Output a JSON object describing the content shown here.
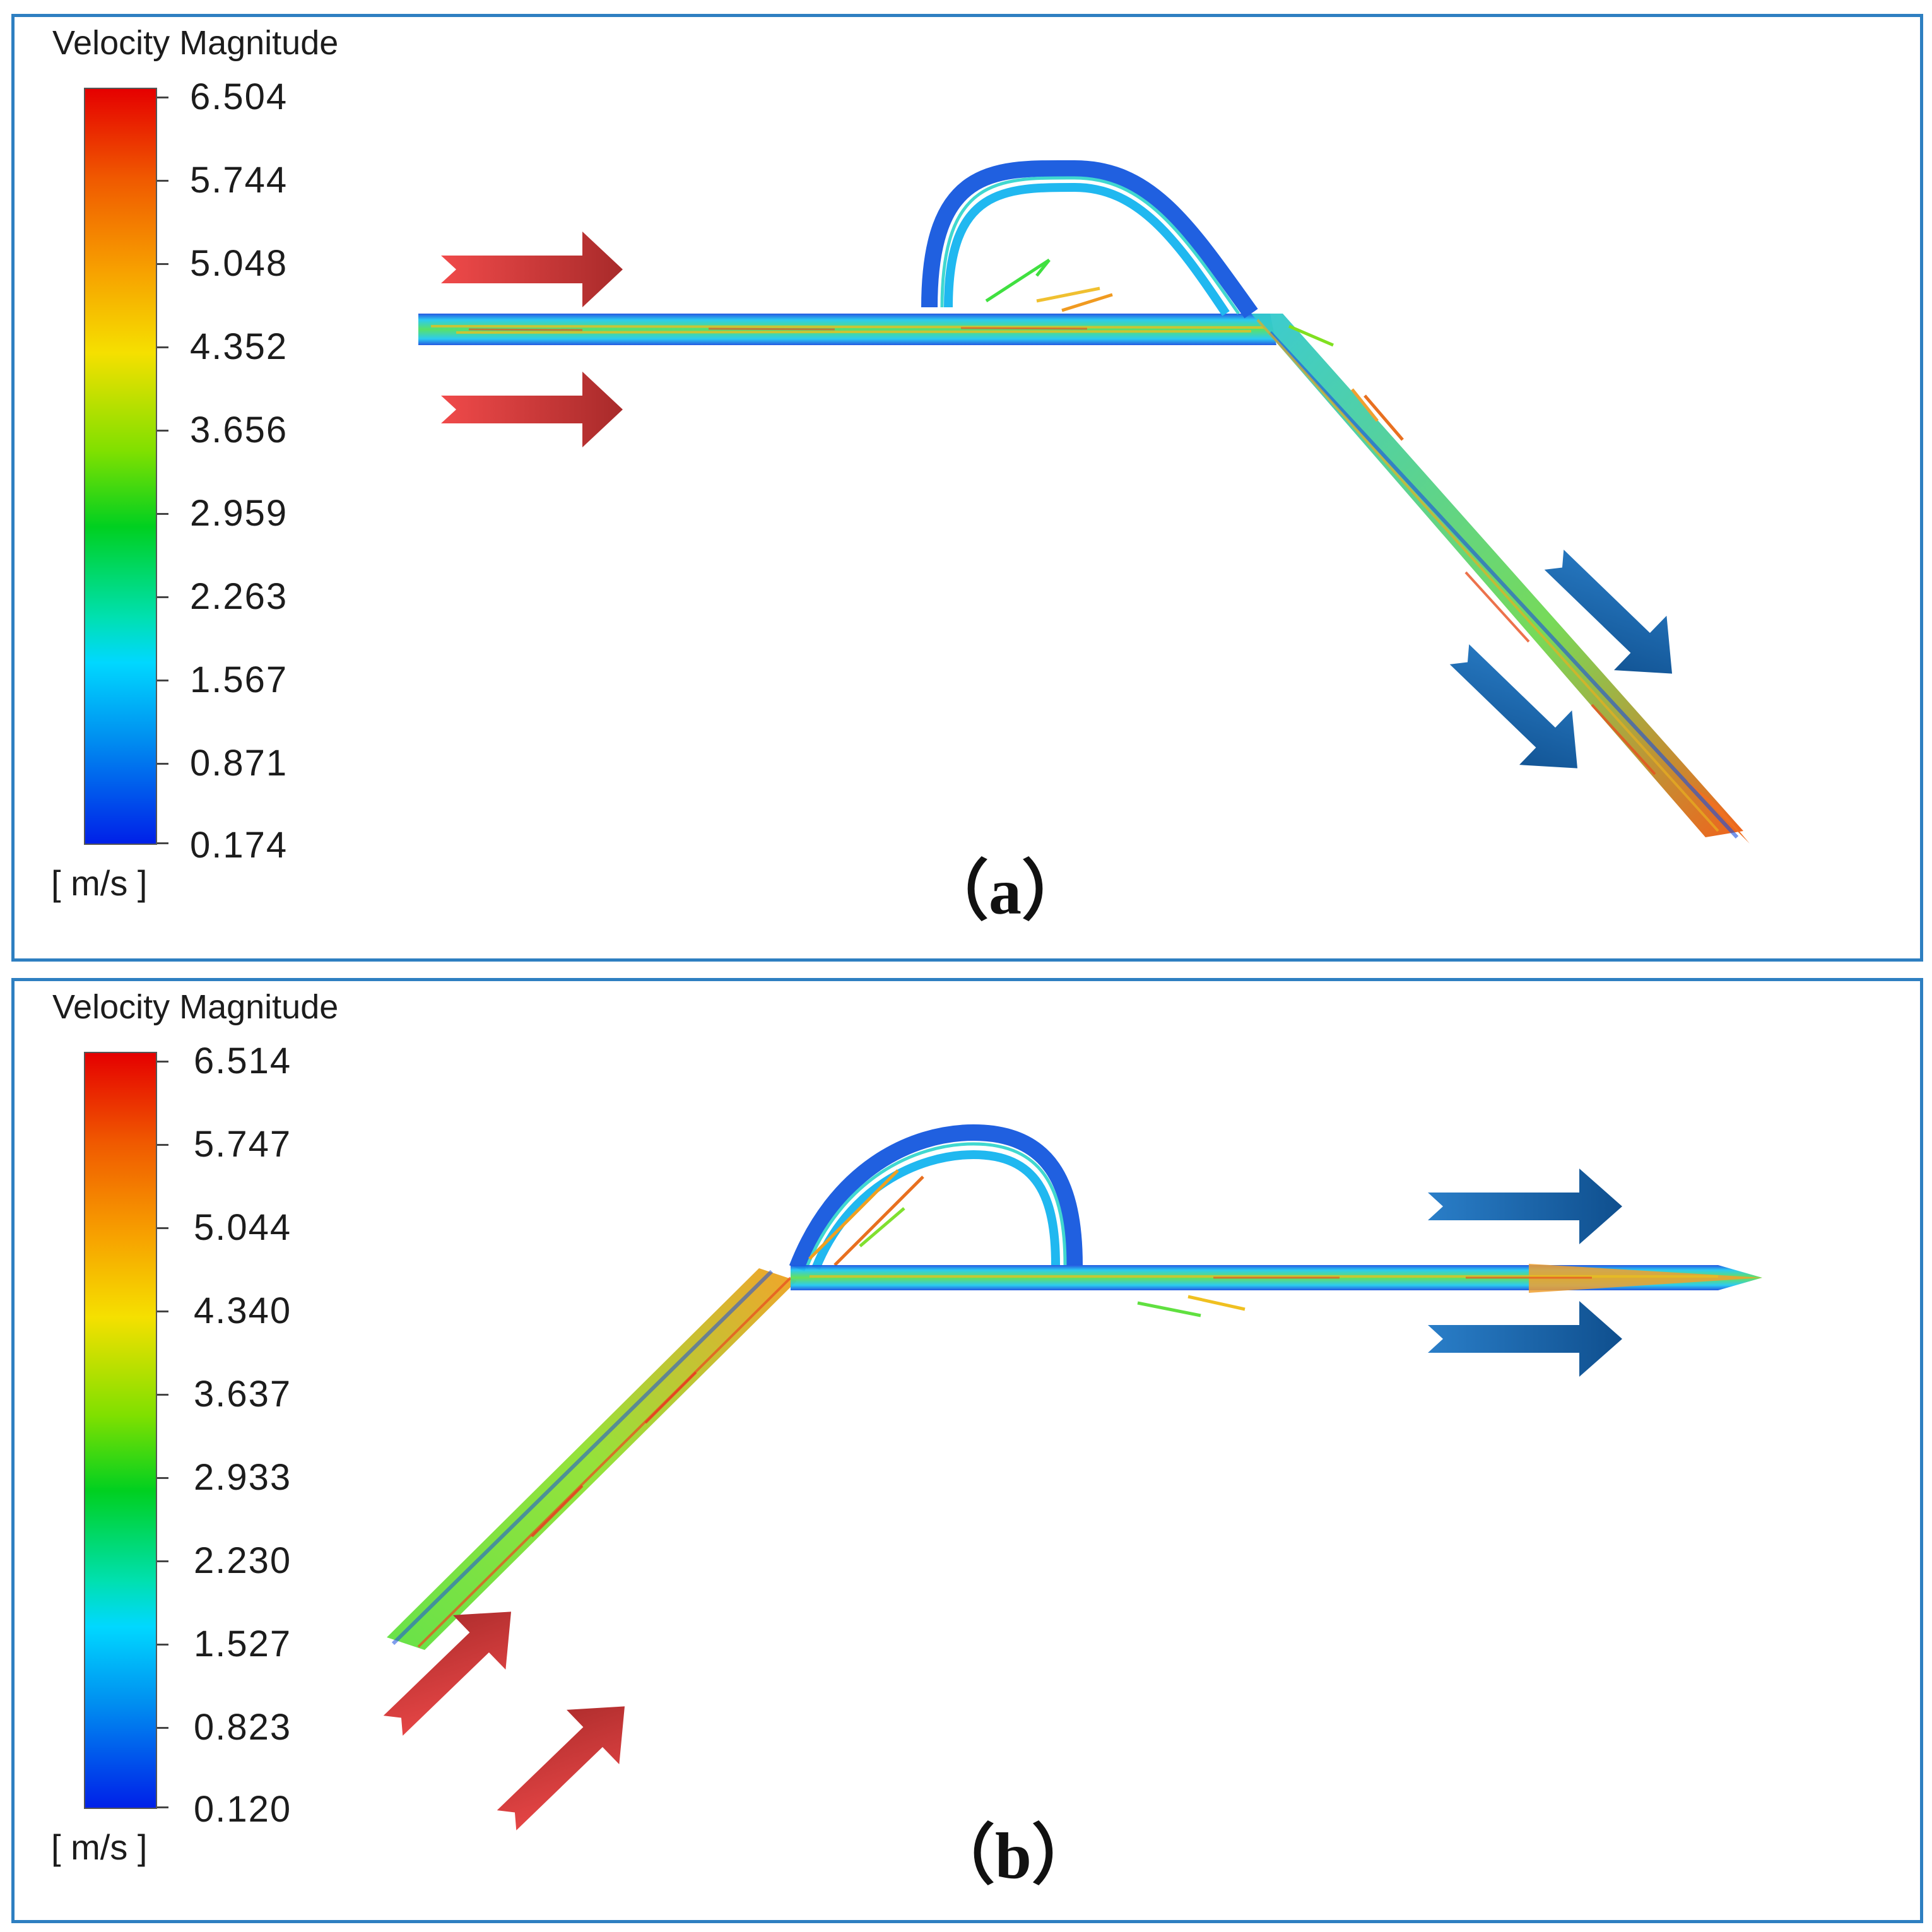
{
  "figure": {
    "panels": [
      {
        "id": "a",
        "legend_title": "Velocity Magnitude",
        "unit": "[ m/s ]",
        "ticks": [
          "6.504",
          "5.744",
          "5.048",
          "4.352",
          "3.656",
          "2.959",
          "2.263",
          "1.567",
          "0.871",
          "0.174"
        ],
        "label": "（a）"
      },
      {
        "id": "b",
        "legend_title": "Velocity Magnitude",
        "unit": "[ m/s ]",
        "ticks": [
          "6.514",
          "5.747",
          "5.044",
          "4.340",
          "3.637",
          "2.933",
          "2.230",
          "1.527",
          "0.823",
          "0.120"
        ],
        "label": "（b）"
      }
    ],
    "colors": {
      "panel_border": "#2e7fc1",
      "inlet_arrow": "#d93b3b",
      "outlet_arrow": "#1f6fb6"
    }
  }
}
